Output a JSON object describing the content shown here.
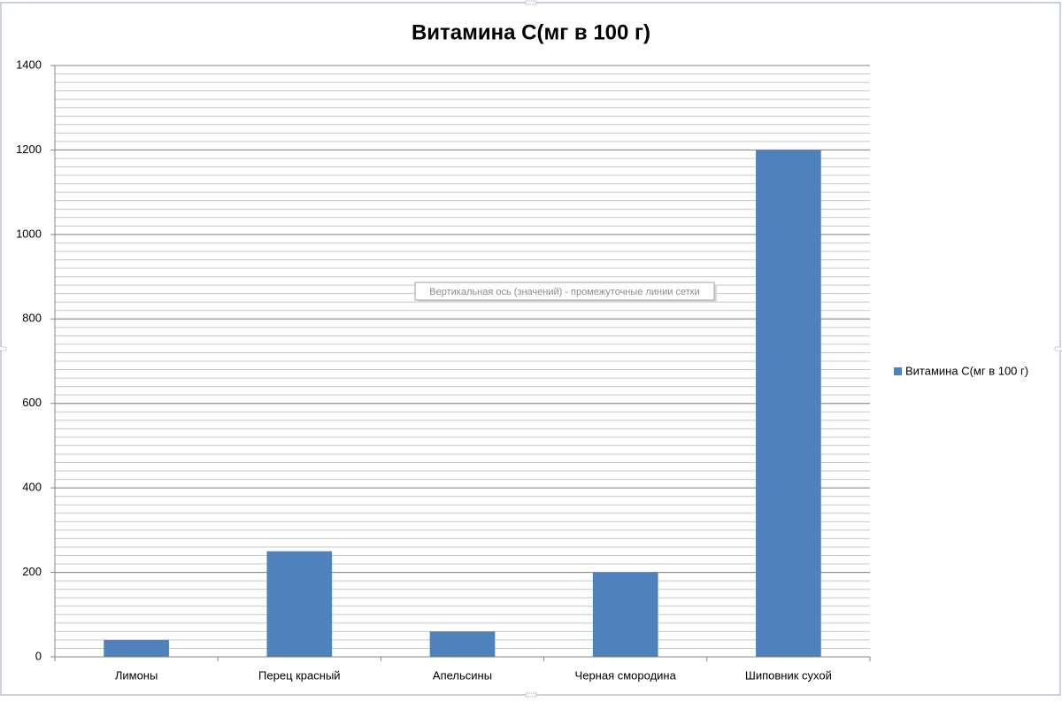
{
  "chart_data": {
    "type": "bar",
    "title": "Витамина С(мг в 100 г)",
    "categories": [
      "Лимоны",
      "Перец красный",
      "Апельсины",
      "Черная смородина",
      "Шиповник сухой"
    ],
    "series": [
      {
        "name": "Витамина С(мг в 100 г)",
        "color": "#4f81bd",
        "values": [
          40,
          250,
          60,
          200,
          1200
        ]
      }
    ],
    "ylim": [
      0,
      1400
    ],
    "yticks": [
      0,
      200,
      400,
      600,
      800,
      1000,
      1200,
      1400
    ],
    "minor_yticks": [
      0,
      20,
      40,
      60,
      80,
      100,
      120,
      140,
      160,
      180,
      200,
      220,
      240,
      260,
      280,
      300,
      320,
      340,
      360,
      380,
      400,
      420,
      440,
      460,
      480,
      500,
      520,
      540,
      560,
      580,
      600,
      620,
      640,
      660,
      680,
      700,
      720,
      740,
      760,
      780,
      800,
      820,
      840,
      860,
      880,
      900,
      920,
      940,
      960,
      980,
      1000,
      1020,
      1040,
      1060,
      1080,
      1100,
      1120,
      1140,
      1160,
      1180,
      1200,
      1220,
      1240,
      1260,
      1280,
      1300,
      1320,
      1340,
      1360,
      1380,
      1400
    ],
    "grid": true,
    "legend": "right",
    "tooltip": "Вертикальная ось (значений)  - промежуточные линии сетки"
  }
}
